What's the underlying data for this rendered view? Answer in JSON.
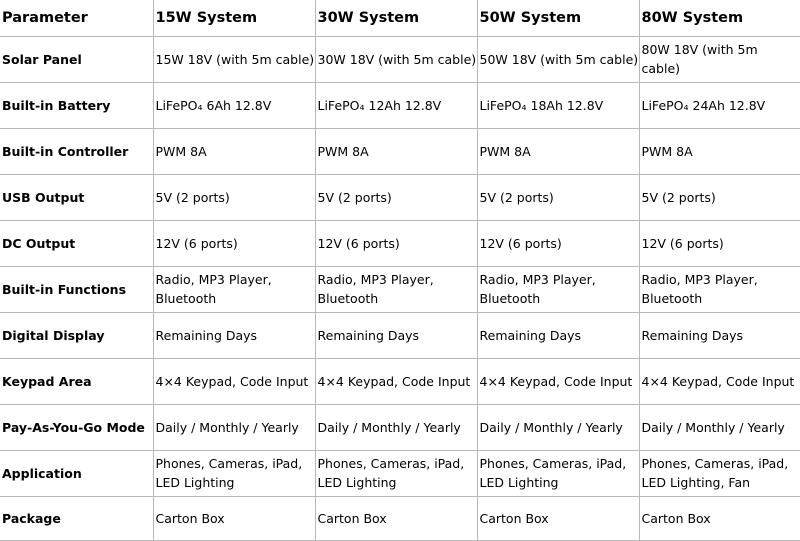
{
  "table": {
    "headers": [
      "Parameter",
      "15W System",
      "30W System",
      "50W System",
      "80W System"
    ],
    "rows": [
      {
        "parameter": "Solar Panel",
        "values": [
          "15W 18V (with 5m cable)",
          "30W 18V (with 5m cable)",
          "50W 18V (with 5m cable)",
          "80W 18V (with 5m cable)"
        ]
      },
      {
        "parameter": "Built-in Battery",
        "values": [
          "LiFePO₄ 6Ah 12.8V",
          "LiFePO₄ 12Ah 12.8V",
          "LiFePO₄ 18Ah 12.8V",
          "LiFePO₄ 24Ah 12.8V"
        ]
      },
      {
        "parameter": "Built-in Controller",
        "values": [
          "PWM 8A",
          "PWM 8A",
          "PWM 8A",
          "PWM 8A"
        ]
      },
      {
        "parameter": "USB Output",
        "values": [
          "5V (2 ports)",
          "5V (2 ports)",
          "5V (2 ports)",
          "5V (2 ports)"
        ]
      },
      {
        "parameter": "DC Output",
        "values": [
          "12V (6 ports)",
          "12V (6 ports)",
          "12V (6 ports)",
          "12V (6 ports)"
        ]
      },
      {
        "parameter": "Built-in Functions",
        "values": [
          "Radio, MP3 Player, Bluetooth",
          "Radio, MP3 Player, Bluetooth",
          "Radio, MP3 Player, Bluetooth",
          "Radio, MP3 Player, Bluetooth"
        ]
      },
      {
        "parameter": "Digital Display",
        "values": [
          "Remaining Days",
          "Remaining Days",
          "Remaining Days",
          "Remaining Days"
        ]
      },
      {
        "parameter": "Keypad Area",
        "values": [
          "4×4 Keypad, Code Input",
          "4×4 Keypad, Code Input",
          "4×4 Keypad, Code Input",
          "4×4 Keypad, Code Input"
        ]
      },
      {
        "parameter": "Pay-As-You-Go Mode",
        "values": [
          "Daily / Monthly / Yearly",
          "Daily / Monthly / Yearly",
          "Daily / Monthly / Yearly",
          "Daily / Monthly / Yearly"
        ]
      },
      {
        "parameter": "Application",
        "values": [
          "Phones, Cameras, iPad, LED Lighting",
          "Phones, Cameras, iPad, LED Lighting",
          "Phones, Cameras, iPad, LED Lighting",
          "Phones, Cameras, iPad, LED Lighting, Fan"
        ]
      },
      {
        "parameter": "Package",
        "values": [
          "Carton Box",
          "Carton Box",
          "Carton Box",
          "Carton Box"
        ]
      }
    ]
  }
}
